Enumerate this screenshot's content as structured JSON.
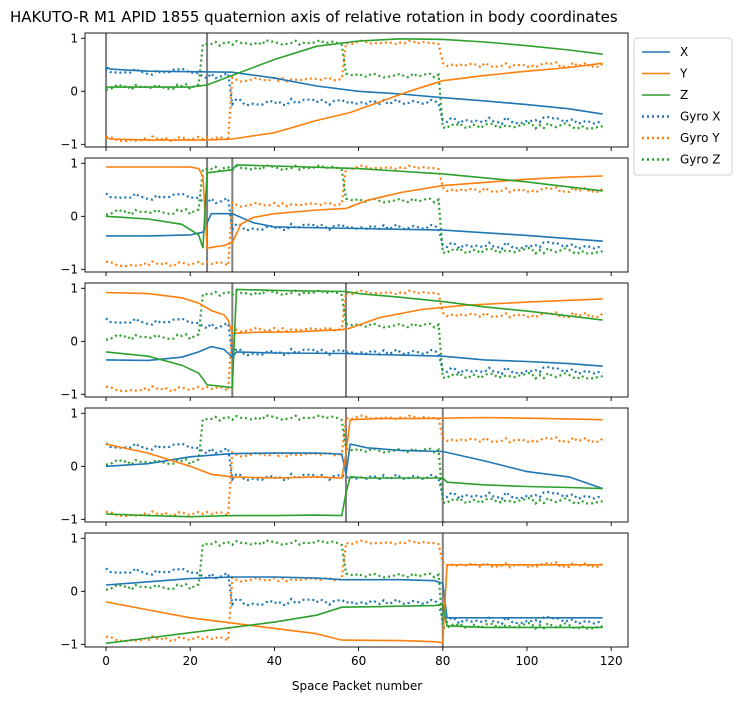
{
  "chart_data": {
    "type": "line",
    "title": "HAKUTO-R M1 APID 1855 quaternion axis of relative rotation in body coordinates",
    "xlabel": "Space Packet number",
    "xlim": [
      -5,
      124
    ],
    "ylim": [
      -1.05,
      1.1
    ],
    "xticks": [
      0,
      20,
      40,
      60,
      80,
      100,
      120
    ],
    "yticks": [
      -1,
      0,
      1
    ],
    "legend": {
      "position": "outside-right",
      "entries": [
        "X",
        "Y",
        "Z",
        "Gyro X",
        "Gyro Y",
        "Gyro Z"
      ]
    },
    "colors": {
      "X": "#1f77b4",
      "Y": "#ff7f0e",
      "Z": "#2ca02c",
      "vline": "#808080"
    },
    "gyro": {
      "segments": [
        [
          0,
          23,
          1
        ],
        [
          23,
          30,
          2
        ],
        [
          30,
          57,
          3
        ],
        [
          57,
          80,
          4
        ],
        [
          80,
          118,
          5
        ]
      ],
      "x_values": [
        0.38,
        0.3,
        -0.2,
        -0.2,
        -0.55
      ],
      "y_values": [
        -0.9,
        -0.9,
        0.22,
        0.92,
        0.5
      ],
      "z_values": [
        0.08,
        0.9,
        0.92,
        0.3,
        -0.65
      ]
    },
    "panels": [
      {
        "vlines": [
          0,
          24
        ],
        "X": [
          [
            0,
            0.46
          ],
          [
            1,
            0.42
          ],
          [
            5,
            0.4
          ],
          [
            10,
            0.38
          ],
          [
            20,
            0.37
          ],
          [
            30,
            0.36
          ],
          [
            40,
            0.25
          ],
          [
            50,
            0.1
          ],
          [
            60,
            0.0
          ],
          [
            70,
            -0.05
          ],
          [
            80,
            -0.12
          ],
          [
            90,
            -0.18
          ],
          [
            100,
            -0.25
          ],
          [
            110,
            -0.33
          ],
          [
            118,
            -0.43
          ]
        ],
        "Y": [
          [
            0,
            -0.88
          ],
          [
            1,
            -0.9
          ],
          [
            10,
            -0.92
          ],
          [
            24,
            -0.92
          ],
          [
            30,
            -0.9
          ],
          [
            40,
            -0.78
          ],
          [
            50,
            -0.55
          ],
          [
            58,
            -0.4
          ],
          [
            65,
            -0.2
          ],
          [
            72,
            0.0
          ],
          [
            80,
            0.2
          ],
          [
            90,
            0.3
          ],
          [
            100,
            0.38
          ],
          [
            110,
            0.45
          ],
          [
            118,
            0.53
          ]
        ],
        "Z": [
          [
            0,
            0.08
          ],
          [
            10,
            0.08
          ],
          [
            20,
            0.08
          ],
          [
            24,
            0.12
          ],
          [
            30,
            0.3
          ],
          [
            40,
            0.6
          ],
          [
            50,
            0.85
          ],
          [
            60,
            0.95
          ],
          [
            70,
            0.99
          ],
          [
            80,
            0.98
          ],
          [
            90,
            0.93
          ],
          [
            100,
            0.86
          ],
          [
            110,
            0.78
          ],
          [
            118,
            0.7
          ]
        ]
      },
      {
        "vlines": [
          24,
          30
        ],
        "X": [
          [
            0,
            -0.37
          ],
          [
            10,
            -0.37
          ],
          [
            20,
            -0.35
          ],
          [
            23,
            -0.3
          ],
          [
            25,
            0.05
          ],
          [
            30,
            0.05
          ],
          [
            35,
            -0.12
          ],
          [
            40,
            -0.2
          ],
          [
            60,
            -0.23
          ],
          [
            80,
            -0.26
          ],
          [
            100,
            -0.36
          ],
          [
            118,
            -0.47
          ]
        ],
        "Y": [
          [
            0,
            0.93
          ],
          [
            10,
            0.93
          ],
          [
            20,
            0.93
          ],
          [
            22,
            0.9
          ],
          [
            23,
            0.75
          ],
          [
            24,
            -0.6
          ],
          [
            28,
            -0.55
          ],
          [
            30,
            -0.5
          ],
          [
            32,
            -0.15
          ],
          [
            35,
            -0.02
          ],
          [
            40,
            0.05
          ],
          [
            50,
            0.12
          ],
          [
            57,
            0.15
          ],
          [
            62,
            0.3
          ],
          [
            70,
            0.45
          ],
          [
            80,
            0.58
          ],
          [
            90,
            0.64
          ],
          [
            100,
            0.7
          ],
          [
            110,
            0.74
          ],
          [
            118,
            0.76
          ]
        ],
        "Z": [
          [
            0,
            0.0
          ],
          [
            10,
            -0.05
          ],
          [
            18,
            -0.15
          ],
          [
            22,
            -0.35
          ],
          [
            23,
            -0.6
          ],
          [
            24,
            0.82
          ],
          [
            30,
            0.88
          ],
          [
            31,
            0.97
          ],
          [
            40,
            0.95
          ],
          [
            60,
            0.9
          ],
          [
            80,
            0.8
          ],
          [
            100,
            0.65
          ],
          [
            118,
            0.48
          ]
        ]
      },
      {
        "vlines": [
          30,
          57
        ],
        "X": [
          [
            0,
            -0.35
          ],
          [
            10,
            -0.36
          ],
          [
            18,
            -0.3
          ],
          [
            22,
            -0.2
          ],
          [
            25,
            -0.1
          ],
          [
            28,
            -0.15
          ],
          [
            30,
            -0.3
          ],
          [
            31,
            -0.2
          ],
          [
            40,
            -0.22
          ],
          [
            57,
            -0.23
          ],
          [
            60,
            -0.24
          ],
          [
            70,
            -0.26
          ],
          [
            80,
            -0.28
          ],
          [
            90,
            -0.35
          ],
          [
            100,
            -0.38
          ],
          [
            110,
            -0.42
          ],
          [
            118,
            -0.47
          ]
        ],
        "Y": [
          [
            0,
            0.92
          ],
          [
            10,
            0.9
          ],
          [
            18,
            0.82
          ],
          [
            22,
            0.72
          ],
          [
            25,
            0.58
          ],
          [
            28,
            0.5
          ],
          [
            29,
            0.4
          ],
          [
            30,
            0.15
          ],
          [
            35,
            0.17
          ],
          [
            45,
            0.18
          ],
          [
            56,
            0.22
          ],
          [
            58,
            0.25
          ],
          [
            65,
            0.45
          ],
          [
            75,
            0.6
          ],
          [
            85,
            0.68
          ],
          [
            100,
            0.74
          ],
          [
            118,
            0.8
          ]
        ],
        "Z": [
          [
            0,
            -0.2
          ],
          [
            10,
            -0.28
          ],
          [
            18,
            -0.45
          ],
          [
            22,
            -0.6
          ],
          [
            24,
            -0.82
          ],
          [
            30,
            -0.87
          ],
          [
            31,
            0.98
          ],
          [
            40,
            0.96
          ],
          [
            57,
            0.94
          ],
          [
            60,
            0.9
          ],
          [
            70,
            0.83
          ],
          [
            80,
            0.75
          ],
          [
            90,
            0.65
          ],
          [
            100,
            0.57
          ],
          [
            110,
            0.48
          ],
          [
            118,
            0.4
          ]
        ]
      },
      {
        "vlines": [
          57,
          80
        ],
        "X": [
          [
            0,
            0.0
          ],
          [
            10,
            0.05
          ],
          [
            20,
            0.18
          ],
          [
            30,
            0.24
          ],
          [
            40,
            0.25
          ],
          [
            50,
            0.25
          ],
          [
            56,
            0.23
          ],
          [
            57,
            -0.15
          ],
          [
            58,
            0.42
          ],
          [
            62,
            0.35
          ],
          [
            70,
            0.3
          ],
          [
            80,
            0.28
          ],
          [
            90,
            0.1
          ],
          [
            100,
            -0.1
          ],
          [
            110,
            -0.2
          ],
          [
            118,
            -0.42
          ]
        ],
        "Y": [
          [
            0,
            0.42
          ],
          [
            10,
            0.25
          ],
          [
            20,
            0.0
          ],
          [
            25,
            -0.15
          ],
          [
            30,
            -0.2
          ],
          [
            40,
            -0.22
          ],
          [
            50,
            -0.2
          ],
          [
            56,
            -0.22
          ],
          [
            57,
            0.25
          ],
          [
            58,
            0.88
          ],
          [
            65,
            0.9
          ],
          [
            75,
            0.9
          ],
          [
            90,
            0.92
          ],
          [
            105,
            0.9
          ],
          [
            118,
            0.88
          ]
        ],
        "Z": [
          [
            0,
            -0.9
          ],
          [
            10,
            -0.93
          ],
          [
            20,
            -0.95
          ],
          [
            30,
            -0.93
          ],
          [
            40,
            -0.93
          ],
          [
            50,
            -0.92
          ],
          [
            56,
            -0.93
          ],
          [
            57,
            -0.5
          ],
          [
            58,
            -0.2
          ],
          [
            62,
            -0.22
          ],
          [
            70,
            -0.22
          ],
          [
            80,
            -0.22
          ],
          [
            81,
            -0.3
          ],
          [
            90,
            -0.35
          ],
          [
            100,
            -0.38
          ],
          [
            110,
            -0.4
          ],
          [
            118,
            -0.42
          ]
        ]
      },
      {
        "vlines": [
          80
        ],
        "X": [
          [
            0,
            0.12
          ],
          [
            10,
            0.18
          ],
          [
            20,
            0.24
          ],
          [
            30,
            0.27
          ],
          [
            40,
            0.27
          ],
          [
            50,
            0.25
          ],
          [
            56,
            0.22
          ],
          [
            70,
            0.22
          ],
          [
            78,
            0.2
          ],
          [
            80,
            0.15
          ],
          [
            81,
            -0.5
          ],
          [
            90,
            -0.5
          ],
          [
            100,
            -0.5
          ],
          [
            118,
            -0.5
          ]
        ],
        "Y": [
          [
            0,
            -0.2
          ],
          [
            10,
            -0.35
          ],
          [
            20,
            -0.5
          ],
          [
            30,
            -0.6
          ],
          [
            40,
            -0.7
          ],
          [
            50,
            -0.8
          ],
          [
            56,
            -0.92
          ],
          [
            70,
            -0.93
          ],
          [
            78,
            -0.95
          ],
          [
            80,
            -0.97
          ],
          [
            81,
            0.5
          ],
          [
            90,
            0.5
          ],
          [
            100,
            0.5
          ],
          [
            118,
            0.5
          ]
        ],
        "Z": [
          [
            0,
            -0.98
          ],
          [
            10,
            -0.88
          ],
          [
            20,
            -0.78
          ],
          [
            30,
            -0.68
          ],
          [
            40,
            -0.58
          ],
          [
            50,
            -0.45
          ],
          [
            56,
            -0.3
          ],
          [
            70,
            -0.28
          ],
          [
            78,
            -0.27
          ],
          [
            80,
            -0.25
          ],
          [
            81,
            -0.65
          ],
          [
            90,
            -0.68
          ],
          [
            100,
            -0.68
          ],
          [
            118,
            -0.68
          ]
        ]
      }
    ]
  }
}
